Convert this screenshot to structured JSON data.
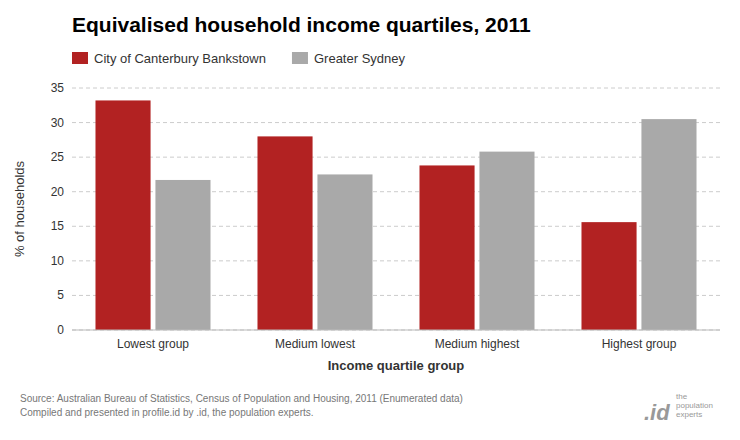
{
  "chart_data": {
    "type": "bar",
    "title": "Equivalised household income quartiles, 2011",
    "categories": [
      "Lowest group",
      "Medium lowest",
      "Medium highest",
      "Highest group"
    ],
    "series": [
      {
        "name": "City of Canterbury Bankstown",
        "color": "#b22222",
        "values": [
          33.2,
          28.0,
          23.8,
          15.6
        ]
      },
      {
        "name": "Greater Sydney",
        "color": "#a9a9a9",
        "values": [
          21.7,
          22.5,
          25.8,
          30.5
        ]
      }
    ],
    "xlabel": "Income quartile group",
    "ylabel": "% of households",
    "ylim": [
      0,
      35
    ],
    "yticks": [
      0,
      5,
      10,
      15,
      20,
      25,
      30,
      35
    ],
    "grid": true,
    "legend": "top",
    "annotations": [
      "Source: Australian Bureau of Statistics, Census of Population and Housing, 2011 (Enumerated data)\nCompiled and presented in profile.id by .id, the population experts.",
      ".id",
      "the\npopulation\nexperts"
    ]
  }
}
